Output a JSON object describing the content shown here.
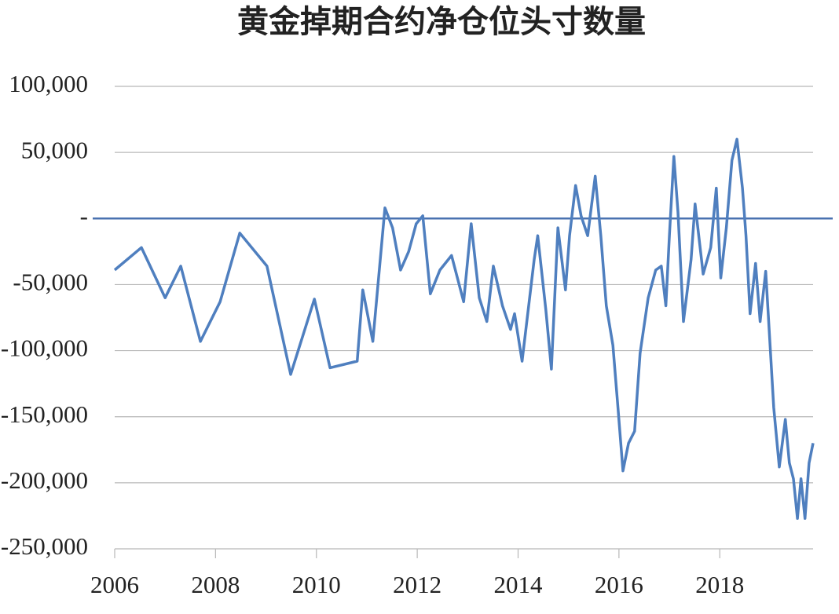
{
  "chart_data": {
    "type": "line",
    "title": "黄金掉期合约净仓位头寸数量",
    "x": [
      2006.0,
      2006.53,
      2007.0,
      2007.31,
      2007.7,
      2008.09,
      2008.48,
      2009.02,
      2009.49,
      2009.96,
      2010.27,
      2010.81,
      2010.92,
      2011.12,
      2011.36,
      2011.51,
      2011.67,
      2011.83,
      2011.98,
      2012.11,
      2012.26,
      2012.45,
      2012.68,
      2012.92,
      2013.07,
      2013.23,
      2013.38,
      2013.51,
      2013.69,
      2013.85,
      2013.93,
      2014.08,
      2014.32,
      2014.39,
      2014.55,
      2014.66,
      2014.79,
      2014.94,
      2015.02,
      2015.14,
      2015.25,
      2015.38,
      2015.53,
      2015.64,
      2015.75,
      2015.88,
      2015.98,
      2016.08,
      2016.19,
      2016.31,
      2016.42,
      2016.58,
      2016.73,
      2016.84,
      2016.93,
      2017.0,
      2017.09,
      2017.17,
      2017.28,
      2017.43,
      2017.51,
      2017.67,
      2017.82,
      2017.93,
      2018.02,
      2018.13,
      2018.24,
      2018.34,
      2018.45,
      2018.52,
      2018.6,
      2018.71,
      2018.8,
      2018.91,
      2018.96,
      2019.07,
      2019.18,
      2019.3,
      2019.38,
      2019.46,
      2019.54,
      2019.61,
      2019.69,
      2019.77,
      2019.85
    ],
    "series": [
      {
        "color": "#4f7fbf",
        "values": [
          -39000,
          -22000,
          -60000,
          -36000,
          -93000,
          -63000,
          -11000,
          -36000,
          -118000,
          -61000,
          -113000,
          -108000,
          -54000,
          -93000,
          8000,
          -7000,
          -39000,
          -25000,
          -4000,
          2000,
          -57000,
          -39000,
          -28000,
          -63000,
          -4000,
          -60000,
          -78000,
          -36000,
          -66000,
          -84000,
          -72000,
          -108000,
          -31000,
          -13000,
          -69000,
          -114000,
          -7000,
          -54000,
          -13000,
          25000,
          2000,
          -13000,
          32000,
          -13000,
          -66000,
          -96000,
          -143000,
          -191000,
          -170000,
          -161000,
          -102000,
          -60000,
          -39000,
          -36000,
          -66000,
          -13000,
          47000,
          5000,
          -78000,
          -31000,
          11000,
          -42000,
          -22000,
          23000,
          -45000,
          -7000,
          44000,
          60000,
          23000,
          -13000,
          -72000,
          -34000,
          -78000,
          -40000,
          -72000,
          -143000,
          -188000,
          -152000,
          -185000,
          -197000,
          -227000,
          -197000,
          -227000,
          -185000,
          -170000
        ]
      }
    ],
    "xlim": [
      2006,
      2019.85
    ],
    "xticks": [
      2006,
      2008,
      2010,
      2012,
      2014,
      2016,
      2018
    ],
    "ylim": [
      -250000,
      100000
    ],
    "yticks": [
      {
        "value": -250000,
        "label": "-250,000"
      },
      {
        "value": -200000,
        "label": "-200,000"
      },
      {
        "value": -150000,
        "label": "-150,000"
      },
      {
        "value": -100000,
        "label": "-100,000"
      },
      {
        "value": -50000,
        "label": "-50,000"
      },
      {
        "value": 0,
        "label": "-"
      },
      {
        "value": 50000,
        "label": "50,000"
      },
      {
        "value": 100000,
        "label": "100,000"
      }
    ],
    "grid": true,
    "zero_line_color": "#4a72b0"
  }
}
